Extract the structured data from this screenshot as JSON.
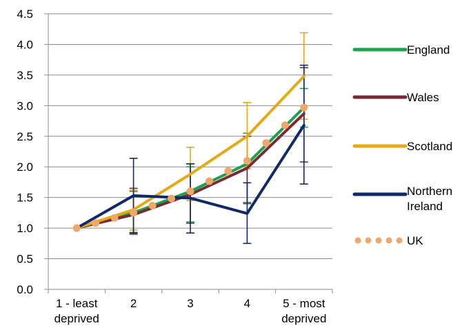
{
  "chart_data": {
    "type": "line",
    "categories": [
      [
        "1 - least",
        "deprived"
      ],
      [
        "2"
      ],
      [
        "3"
      ],
      [
        "4"
      ],
      [
        "5 - most",
        "deprived"
      ]
    ],
    "ylim": [
      0,
      4.5
    ],
    "yticks": [
      "0.0",
      "0.5",
      "1.0",
      "1.5",
      "2.0",
      "2.5",
      "3.0",
      "3.5",
      "4.0",
      "4.5"
    ],
    "grid": "horizontal",
    "legend_position": "right",
    "series": [
      {
        "name": "England",
        "color": "#1aa34a",
        "values": [
          1.0,
          1.25,
          1.6,
          2.05,
          2.97
        ],
        "error_low": [
          1.0,
          0.93,
          1.1,
          1.42,
          2.65
        ],
        "error_high": [
          1.0,
          1.6,
          2.0,
          2.55,
          3.28
        ]
      },
      {
        "name": "Wales",
        "color": "#7b2a35",
        "values": [
          1.0,
          1.22,
          1.55,
          1.98,
          2.87
        ],
        "error_low": [
          1.0,
          0.9,
          1.08,
          1.4,
          2.08
        ],
        "error_high": [
          1.0,
          1.65,
          2.05,
          2.5,
          3.62
        ]
      },
      {
        "name": "Scotland",
        "color": "#e6a814",
        "values": [
          1.0,
          1.3,
          1.88,
          2.5,
          3.48
        ],
        "error_low": [
          1.0,
          0.97,
          1.45,
          1.97,
          2.78
        ],
        "error_high": [
          1.0,
          1.62,
          2.32,
          3.05,
          4.19
        ]
      },
      {
        "name": [
          "Northern",
          "Ireland"
        ],
        "color": "#0f2a6b",
        "values": [
          1.0,
          1.53,
          1.49,
          1.24,
          2.68
        ],
        "error_low": [
          1.0,
          0.92,
          0.92,
          0.75,
          1.72
        ],
        "error_high": [
          1.0,
          2.14,
          2.05,
          1.74,
          3.66
        ]
      },
      {
        "name": "UK",
        "color": "#f0a868",
        "style": "dotted",
        "values": [
          1.0,
          1.25,
          1.6,
          2.1,
          2.97
        ]
      }
    ]
  }
}
